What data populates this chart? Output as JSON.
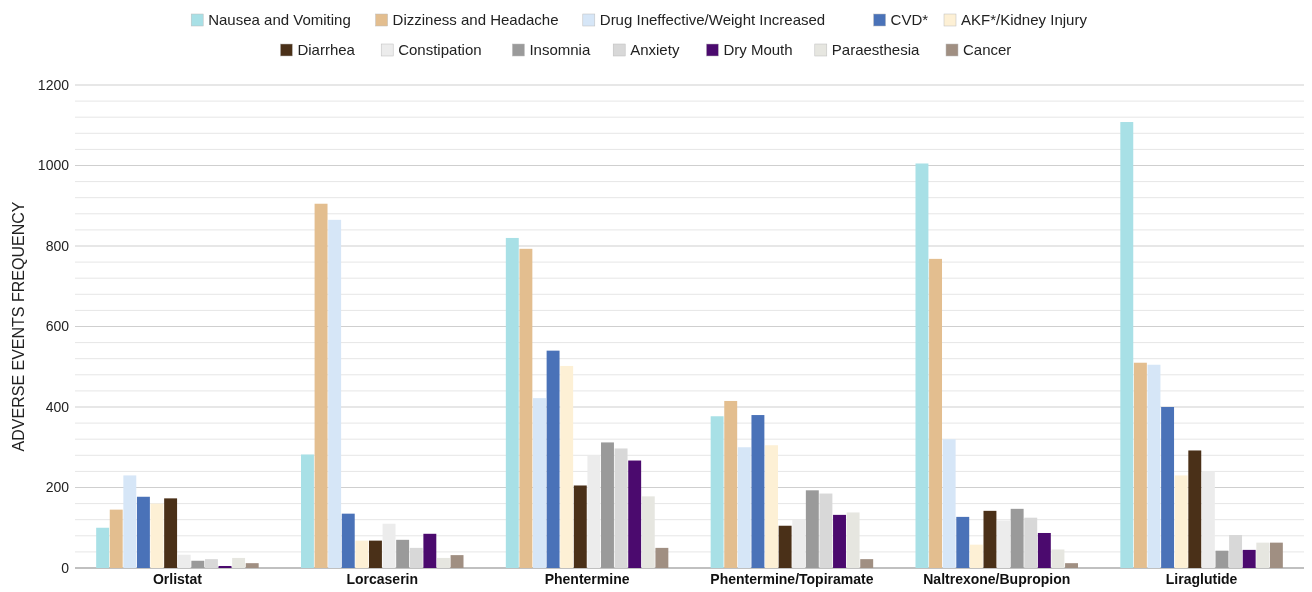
{
  "chart_data": {
    "type": "bar",
    "ylabel": "ADVERSE EVENTS FREQUENCY",
    "categories": [
      "Orlistat",
      "Lorcaserin",
      "Phentermine",
      "Phentermine/Topiramate",
      "Naltrexone/Bupropion",
      "Liraglutide"
    ],
    "series": [
      {
        "name": "Nausea and Vomiting",
        "color": "#a8e0e6",
        "values": [
          100,
          282,
          820,
          377,
          1005,
          1108
        ]
      },
      {
        "name": "Dizziness and Headache",
        "color": "#e3be8f",
        "values": [
          145,
          905,
          793,
          415,
          768,
          510
        ]
      },
      {
        "name": "Drug Ineffective/Weight Increased",
        "color": "#d6e6f7",
        "values": [
          230,
          865,
          422,
          300,
          320,
          505
        ]
      },
      {
        "name": "CVD*",
        "color": "#4a72b8",
        "values": [
          177,
          135,
          540,
          380,
          127,
          400
        ]
      },
      {
        "name": "AKF*/Kidney Injury",
        "color": "#fdf0d5",
        "values": [
          160,
          68,
          502,
          305,
          58,
          230
        ]
      },
      {
        "name": "Diarrhea",
        "color": "#4a3018",
        "values": [
          173,
          68,
          205,
          105,
          142,
          292
        ]
      },
      {
        "name": "Constipation",
        "color": "#ececec",
        "values": [
          33,
          110,
          280,
          120,
          118,
          240
        ]
      },
      {
        "name": "Insomnia",
        "color": "#9a9a9a",
        "values": [
          18,
          70,
          312,
          193,
          147,
          43
        ]
      },
      {
        "name": "Anxiety",
        "color": "#d8d8d8",
        "values": [
          22,
          50,
          297,
          185,
          125,
          82
        ]
      },
      {
        "name": "Dry Mouth",
        "color": "#4b0a6e",
        "values": [
          5,
          85,
          267,
          132,
          87,
          45
        ]
      },
      {
        "name": "Paraesthesia",
        "color": "#e6e6e0",
        "values": [
          25,
          25,
          178,
          138,
          46,
          63
        ]
      },
      {
        "name": "Cancer",
        "color": "#a08f82",
        "values": [
          12,
          32,
          50,
          22,
          12,
          63
        ]
      }
    ],
    "ylim": [
      0,
      1200
    ],
    "yticks": [
      0,
      {
        "value": 40,
        "label": null
      },
      {
        "value": 80,
        "label": null
      },
      {
        "value": 120,
        "label": null
      },
      {
        "value": 160,
        "label": null
      },
      200,
      {
        "value": 240,
        "label": null
      },
      {
        "value": 280,
        "label": null
      },
      {
        "value": 320,
        "label": null
      },
      {
        "value": 360,
        "label": null
      },
      400,
      {
        "value": 440,
        "label": null
      },
      {
        "value": 480,
        "label": null
      },
      {
        "value": 520,
        "label": null
      },
      {
        "value": 560,
        "label": null
      },
      600,
      {
        "value": 640,
        "label": null
      },
      {
        "value": 680,
        "label": null
      },
      {
        "value": 720,
        "label": null
      },
      {
        "value": 760,
        "label": null
      },
      800,
      {
        "value": 840,
        "label": null
      },
      {
        "value": 880,
        "label": null
      },
      {
        "value": 920,
        "label": null
      },
      {
        "value": 960,
        "label": null
      },
      1000,
      {
        "value": 1040,
        "label": null
      },
      {
        "value": 1080,
        "label": null
      },
      {
        "value": 1120,
        "label": null
      },
      {
        "value": 1160,
        "label": null
      },
      1200
    ],
    "grid": true,
    "legend": "top"
  }
}
